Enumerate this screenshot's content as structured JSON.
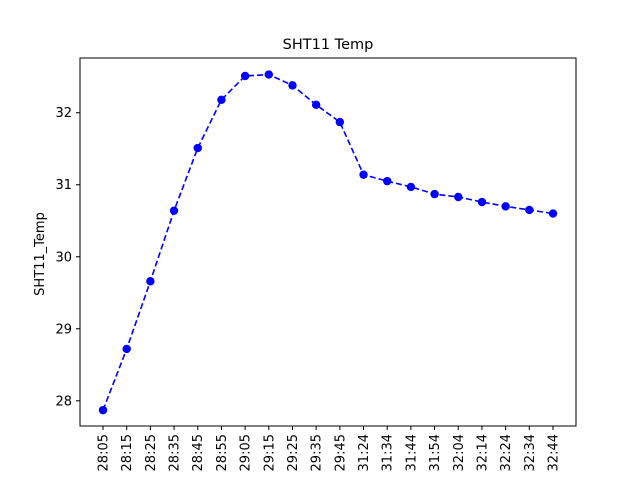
{
  "chart_data": {
    "type": "line",
    "title": "SHT11 Temp",
    "xlabel": "",
    "ylabel": "SHT11_Temp",
    "categories": [
      "28:05",
      "28:15",
      "28:25",
      "28:35",
      "28:45",
      "28:55",
      "29:05",
      "29:15",
      "29:25",
      "29:35",
      "29:45",
      "31:24",
      "31:34",
      "31:44",
      "31:54",
      "32:04",
      "32:14",
      "32:24",
      "32:34",
      "32:44"
    ],
    "series": [
      {
        "values": [
          27.87,
          28.72,
          29.66,
          30.64,
          31.51,
          32.18,
          32.51,
          32.53,
          32.38,
          32.11,
          31.87,
          31.14,
          31.05,
          30.97,
          30.87,
          30.83,
          30.76,
          30.7,
          30.65,
          30.6
        ],
        "color": "#0000ff",
        "linestyle": "dashed",
        "marker": "circle"
      }
    ],
    "yticks": [
      28,
      29,
      30,
      31,
      32
    ],
    "ylim": [
      27.65,
      32.76
    ],
    "grid": false,
    "legend": "none"
  }
}
